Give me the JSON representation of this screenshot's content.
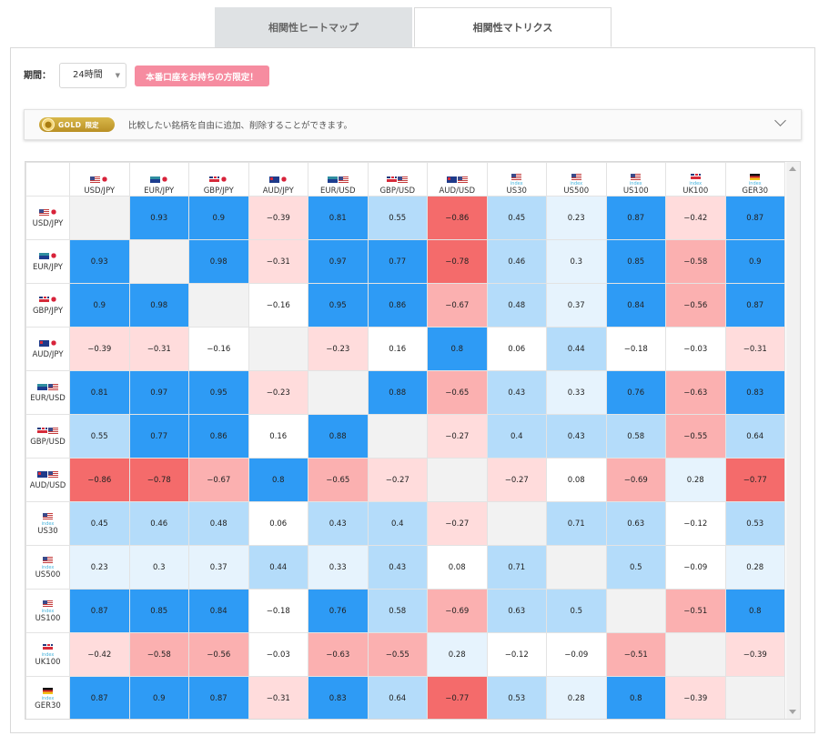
{
  "tabs": [
    {
      "label": "相関性ヒートマップ",
      "active": false
    },
    {
      "label": "相関性マトリクス",
      "active": true
    }
  ],
  "period": {
    "label": "期間：",
    "value": "24時間"
  },
  "promo_badge": "本番口座をお持ちの方限定！",
  "gold_banner": {
    "badge_text": "GOLD",
    "badge_sub": "限定",
    "text": "比較したい銘柄を自由に追加、削除することができます。"
  },
  "colors": {
    "strong_positive": "#2e9bf5",
    "mid_positive": "#b4dcfa",
    "weak_positive": "#e6f3fd",
    "neutral": "#ffffff",
    "weak_negative": "#ffdcdc",
    "mid_negative": "#fbb0b0",
    "strong_negative": "#f46b6b",
    "diagonal": "#f2f2f2"
  },
  "matrix": {
    "symbols": [
      {
        "label": "USD/JPY",
        "flags": [
          "us",
          "jp"
        ]
      },
      {
        "label": "EUR/JPY",
        "flags": [
          "eu",
          "jp"
        ]
      },
      {
        "label": "GBP/JPY",
        "flags": [
          "uk",
          "jp"
        ]
      },
      {
        "label": "AUD/JPY",
        "flags": [
          "au",
          "jp"
        ]
      },
      {
        "label": "EUR/USD",
        "flags": [
          "eu",
          "us"
        ]
      },
      {
        "label": "GBP/USD",
        "flags": [
          "uk",
          "us"
        ]
      },
      {
        "label": "AUD/USD",
        "flags": [
          "au",
          "us"
        ]
      },
      {
        "label": "US30",
        "flags": [
          "us"
        ],
        "tag": "index"
      },
      {
        "label": "US500",
        "flags": [
          "us"
        ],
        "tag": "index"
      },
      {
        "label": "US100",
        "flags": [
          "us"
        ],
        "tag": "index"
      },
      {
        "label": "UK100",
        "flags": [
          "uk"
        ],
        "tag": "index"
      },
      {
        "label": "GER30",
        "flags": [
          "de"
        ],
        "tag": "index"
      }
    ],
    "values": [
      [
        "",
        "0.93",
        "0.9",
        "−0.39",
        "0.81",
        "0.55",
        "−0.86",
        "0.45",
        "0.23",
        "0.87",
        "−0.42",
        "0.87"
      ],
      [
        "0.93",
        "",
        "0.98",
        "−0.31",
        "0.97",
        "0.77",
        "−0.78",
        "0.46",
        "0.3",
        "0.85",
        "−0.58",
        "0.9"
      ],
      [
        "0.9",
        "0.98",
        "",
        "−0.16",
        "0.95",
        "0.86",
        "−0.67",
        "0.48",
        "0.37",
        "0.84",
        "−0.56",
        "0.87"
      ],
      [
        "−0.39",
        "−0.31",
        "−0.16",
        "",
        "−0.23",
        "0.16",
        "0.8",
        "0.06",
        "0.44",
        "−0.18",
        "−0.03",
        "−0.31"
      ],
      [
        "0.81",
        "0.97",
        "0.95",
        "−0.23",
        "",
        "0.88",
        "−0.65",
        "0.43",
        "0.33",
        "0.76",
        "−0.63",
        "0.83"
      ],
      [
        "0.55",
        "0.77",
        "0.86",
        "0.16",
        "0.88",
        "",
        "−0.27",
        "0.4",
        "0.43",
        "0.58",
        "−0.55",
        "0.64"
      ],
      [
        "−0.86",
        "−0.78",
        "−0.67",
        "0.8",
        "−0.65",
        "−0.27",
        "",
        "−0.27",
        "0.08",
        "−0.69",
        "0.28",
        "−0.77"
      ],
      [
        "0.45",
        "0.46",
        "0.48",
        "0.06",
        "0.43",
        "0.4",
        "−0.27",
        "",
        "0.71",
        "0.63",
        "−0.12",
        "0.53"
      ],
      [
        "0.23",
        "0.3",
        "0.37",
        "0.44",
        "0.33",
        "0.43",
        "0.08",
        "0.71",
        "",
        "0.5",
        "−0.09",
        "0.28"
      ],
      [
        "0.87",
        "0.85",
        "0.84",
        "−0.18",
        "0.76",
        "0.58",
        "−0.69",
        "0.63",
        "0.5",
        "",
        "−0.51",
        "0.8"
      ],
      [
        "−0.42",
        "−0.58",
        "−0.56",
        "−0.03",
        "−0.63",
        "−0.55",
        "0.28",
        "−0.12",
        "−0.09",
        "−0.51",
        "",
        "−0.39"
      ],
      [
        "0.87",
        "0.9",
        "0.87",
        "−0.31",
        "0.83",
        "0.64",
        "−0.77",
        "0.53",
        "0.28",
        "0.8",
        "−0.39",
        ""
      ]
    ]
  }
}
